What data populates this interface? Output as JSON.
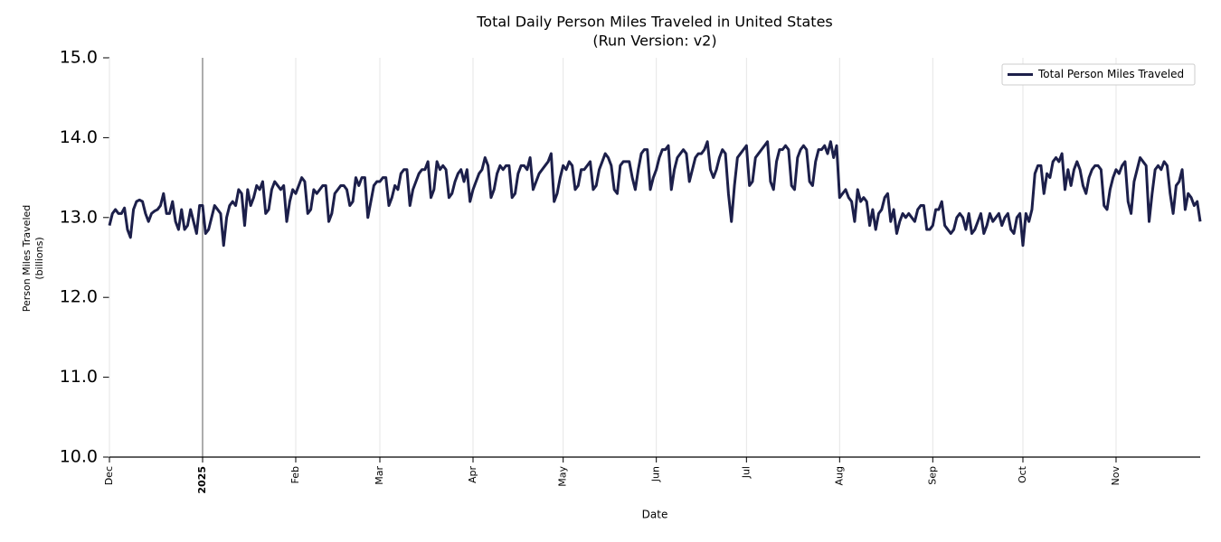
{
  "chart_data": {
    "type": "line",
    "title": "Total Daily Person Miles Traveled in United States",
    "subtitle": "(Run Version: v2)",
    "xlabel": "Date",
    "ylabel": [
      "Person Miles Traveled",
      "(billions)"
    ],
    "legend": "upper right",
    "grid": true,
    "xlim": [
      0,
      363
    ],
    "xticks": [
      {
        "value": 0,
        "label": "Dec"
      },
      {
        "value": 31,
        "label": "2025"
      },
      {
        "value": 62,
        "label": "Feb"
      },
      {
        "value": 90,
        "label": "Mar"
      },
      {
        "value": 121,
        "label": "Apr"
      },
      {
        "value": 151,
        "label": "May"
      },
      {
        "value": 182,
        "label": "Jun"
      },
      {
        "value": 212,
        "label": "Jul"
      },
      {
        "value": 243,
        "label": "Aug"
      },
      {
        "value": 274,
        "label": "Sep"
      },
      {
        "value": 304,
        "label": "Oct"
      },
      {
        "value": 335,
        "label": "Nov"
      }
    ],
    "ylim": [
      10,
      15
    ],
    "yticks": [
      {
        "value": 10,
        "label": "10.0"
      },
      {
        "value": 11,
        "label": "11.0"
      },
      {
        "value": 12,
        "label": "12.0"
      },
      {
        "value": 13,
        "label": "13.0"
      },
      {
        "value": 14,
        "label": "14.0"
      },
      {
        "value": 15,
        "label": "15.0"
      }
    ],
    "series": [
      {
        "name": "Total Person Miles Traveled",
        "color": "#1c1f4a",
        "values": [
          12.9,
          13.05,
          13.1,
          13.05,
          13.05,
          13.12,
          12.85,
          12.75,
          13.1,
          13.2,
          13.22,
          13.2,
          13.05,
          12.95,
          13.05,
          13.08,
          13.1,
          13.15,
          13.3,
          13.05,
          13.05,
          13.2,
          12.95,
          12.85,
          13.1,
          12.85,
          12.9,
          13.1,
          12.95,
          12.8,
          13.15,
          13.15,
          12.8,
          12.85,
          13.0,
          13.15,
          13.1,
          13.05,
          12.65,
          13.0,
          13.15,
          13.2,
          13.15,
          13.35,
          13.3,
          12.9,
          13.35,
          13.15,
          13.25,
          13.4,
          13.35,
          13.45,
          13.05,
          13.1,
          13.35,
          13.45,
          13.4,
          13.35,
          13.4,
          12.95,
          13.2,
          13.35,
          13.3,
          13.4,
          13.5,
          13.45,
          13.05,
          13.1,
          13.35,
          13.3,
          13.35,
          13.4,
          13.4,
          12.95,
          13.05,
          13.3,
          13.35,
          13.4,
          13.4,
          13.35,
          13.15,
          13.2,
          13.5,
          13.4,
          13.5,
          13.5,
          13.0,
          13.2,
          13.4,
          13.45,
          13.45,
          13.5,
          13.5,
          13.15,
          13.25,
          13.4,
          13.35,
          13.55,
          13.6,
          13.6,
          13.15,
          13.35,
          13.45,
          13.55,
          13.6,
          13.6,
          13.7,
          13.25,
          13.35,
          13.7,
          13.6,
          13.65,
          13.6,
          13.25,
          13.3,
          13.45,
          13.55,
          13.6,
          13.45,
          13.6,
          13.2,
          13.35,
          13.45,
          13.55,
          13.6,
          13.75,
          13.65,
          13.25,
          13.35,
          13.55,
          13.65,
          13.6,
          13.65,
          13.65,
          13.25,
          13.3,
          13.55,
          13.65,
          13.65,
          13.6,
          13.75,
          13.35,
          13.45,
          13.55,
          13.6,
          13.65,
          13.7,
          13.8,
          13.2,
          13.3,
          13.5,
          13.65,
          13.6,
          13.7,
          13.65,
          13.35,
          13.4,
          13.6,
          13.6,
          13.65,
          13.7,
          13.35,
          13.4,
          13.6,
          13.7,
          13.8,
          13.75,
          13.65,
          13.35,
          13.3,
          13.65,
          13.7,
          13.7,
          13.7,
          13.5,
          13.35,
          13.6,
          13.8,
          13.85,
          13.85,
          13.35,
          13.5,
          13.6,
          13.75,
          13.85,
          13.85,
          13.9,
          13.35,
          13.6,
          13.75,
          13.8,
          13.85,
          13.8,
          13.45,
          13.6,
          13.75,
          13.8,
          13.8,
          13.85,
          13.95,
          13.6,
          13.5,
          13.6,
          13.75,
          13.85,
          13.8,
          13.3,
          12.95,
          13.4,
          13.75,
          13.8,
          13.85,
          13.9,
          13.4,
          13.45,
          13.75,
          13.8,
          13.85,
          13.9,
          13.95,
          13.45,
          13.35,
          13.7,
          13.85,
          13.85,
          13.9,
          13.85,
          13.4,
          13.35,
          13.75,
          13.85,
          13.9,
          13.85,
          13.45,
          13.4,
          13.7,
          13.85,
          13.85,
          13.9,
          13.8,
          13.95,
          13.75,
          13.9,
          13.25,
          13.3,
          13.35,
          13.25,
          13.2,
          12.95,
          13.35,
          13.2,
          13.25,
          13.2,
          12.9,
          13.1,
          12.85,
          13.05,
          13.1,
          13.25,
          13.3,
          12.95,
          13.1,
          12.8,
          12.95,
          13.05,
          13.0,
          13.05,
          13.0,
          12.95,
          13.1,
          13.15,
          13.15,
          12.85,
          12.85,
          12.9,
          13.1,
          13.1,
          13.2,
          12.9,
          12.85,
          12.8,
          12.85,
          13.0,
          13.05,
          13.0,
          12.85,
          13.05,
          12.8,
          12.85,
          12.95,
          13.05,
          12.8,
          12.9,
          13.05,
          12.95,
          13.0,
          13.05,
          12.9,
          13.0,
          13.05,
          12.85,
          12.8,
          13.0,
          13.05,
          12.65,
          13.05,
          12.95,
          13.1,
          13.55,
          13.65,
          13.65,
          13.3,
          13.55,
          13.5,
          13.7,
          13.75,
          13.7,
          13.8,
          13.35,
          13.6,
          13.4,
          13.6,
          13.7,
          13.6,
          13.4,
          13.3,
          13.5,
          13.6,
          13.65,
          13.65,
          13.6,
          13.15,
          13.1,
          13.35,
          13.5,
          13.6,
          13.55,
          13.65,
          13.7,
          13.2,
          13.05,
          13.45,
          13.6,
          13.75,
          13.7,
          13.65,
          12.95,
          13.3,
          13.6,
          13.65,
          13.6,
          13.7,
          13.65,
          13.3,
          13.05,
          13.4,
          13.45,
          13.6,
          13.1,
          13.3,
          13.25,
          13.15,
          13.2,
          12.95
        ]
      }
    ]
  }
}
